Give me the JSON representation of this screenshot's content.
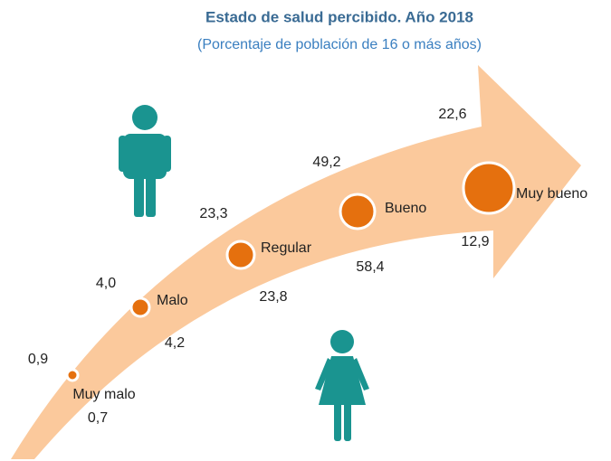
{
  "chart_data": {
    "type": "arrow",
    "title": "Estado de salud percibido. Año 2018",
    "subtitle": "(Porcentaje de población de 16 o más años)",
    "categories": [
      "Muy malo",
      "Malo",
      "Regular",
      "Bueno",
      "Muy bueno"
    ],
    "series": [
      {
        "values": [
          0.9,
          4.0,
          23.3,
          49.2,
          22.6
        ],
        "value_labels": [
          "0,9",
          "4,0",
          "23,3",
          "49,2",
          "22,6"
        ],
        "color": "#1a9490"
      },
      {
        "values": [
          0.7,
          4.2,
          23.8,
          58.4,
          12.9
        ],
        "value_labels": [
          "0,7",
          "4,2",
          "23,8",
          "58,4",
          "12,9"
        ],
        "color": "#1a9490"
      }
    ],
    "arrow_color": "#fbc99c",
    "point_color": "#e5700e"
  }
}
